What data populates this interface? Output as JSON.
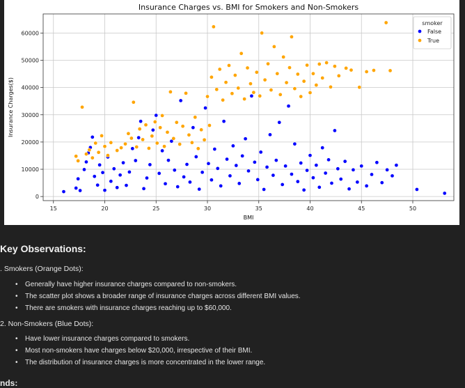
{
  "chart_data": {
    "type": "scatter",
    "title": "Insurance Charges vs. BMI for Smokers and Non-Smokers",
    "xlabel": "BMI",
    "ylabel": "Insurance Charges($)",
    "xlim": [
      14,
      54
    ],
    "ylim": [
      -1500,
      67000
    ],
    "xticks": [
      15,
      20,
      25,
      30,
      35,
      40,
      45,
      50
    ],
    "yticks": [
      0,
      10000,
      20000,
      30000,
      40000,
      50000,
      60000
    ],
    "ytick_labels": [
      "0",
      "10000",
      "20000",
      "30000",
      "40000",
      "50000",
      "60000"
    ],
    "grid": true,
    "legend": {
      "title": "smoker",
      "placement": "top-right"
    },
    "series": [
      {
        "name": "False",
        "color": "#0000ff",
        "values": [
          [
            16,
            1800
          ],
          [
            17.2,
            3100
          ],
          [
            17.4,
            6500
          ],
          [
            17.6,
            2200
          ],
          [
            18.0,
            9900
          ],
          [
            18.2,
            12700
          ],
          [
            18.4,
            16000
          ],
          [
            18.6,
            18000
          ],
          [
            18.8,
            21800
          ],
          [
            19.0,
            7400
          ],
          [
            19.3,
            4200
          ],
          [
            19.5,
            11600
          ],
          [
            19.8,
            8800
          ],
          [
            20.0,
            2300
          ],
          [
            20.3,
            14500
          ],
          [
            20.6,
            5600
          ],
          [
            20.9,
            10200
          ],
          [
            21.2,
            3300
          ],
          [
            21.5,
            7900
          ],
          [
            21.8,
            12400
          ],
          [
            22.1,
            4100
          ],
          [
            22.4,
            9000
          ],
          [
            22.7,
            17600
          ],
          [
            23.0,
            13200
          ],
          [
            23.3,
            21600
          ],
          [
            23.5,
            27600
          ],
          [
            23.8,
            2900
          ],
          [
            24.1,
            6800
          ],
          [
            24.4,
            11700
          ],
          [
            24.7,
            24400
          ],
          [
            25.0,
            29800
          ],
          [
            25.3,
            8500
          ],
          [
            25.6,
            16800
          ],
          [
            25.9,
            4700
          ],
          [
            26.2,
            13300
          ],
          [
            26.5,
            20300
          ],
          [
            26.8,
            9700
          ],
          [
            27.1,
            3600
          ],
          [
            27.4,
            35200
          ],
          [
            27.7,
            7200
          ],
          [
            28.0,
            11800
          ],
          [
            28.3,
            5300
          ],
          [
            28.6,
            25300
          ],
          [
            28.9,
            14600
          ],
          [
            29.2,
            2700
          ],
          [
            29.5,
            8900
          ],
          [
            29.8,
            32500
          ],
          [
            30.1,
            12100
          ],
          [
            30.4,
            6100
          ],
          [
            30.7,
            17400
          ],
          [
            31.0,
            10300
          ],
          [
            31.3,
            3900
          ],
          [
            31.6,
            27600
          ],
          [
            31.9,
            13700
          ],
          [
            32.2,
            7600
          ],
          [
            32.5,
            18600
          ],
          [
            32.8,
            11400
          ],
          [
            33.1,
            4800
          ],
          [
            33.4,
            14900
          ],
          [
            33.7,
            21200
          ],
          [
            34.0,
            9400
          ],
          [
            34.3,
            36900
          ],
          [
            34.6,
            12600
          ],
          [
            34.9,
            6200
          ],
          [
            35.2,
            16300
          ],
          [
            35.5,
            2600
          ],
          [
            35.8,
            10800
          ],
          [
            36.1,
            22700
          ],
          [
            36.4,
            7800
          ],
          [
            36.7,
            13300
          ],
          [
            37.0,
            27200
          ],
          [
            37.3,
            4400
          ],
          [
            37.6,
            11200
          ],
          [
            37.9,
            33200
          ],
          [
            38.2,
            8200
          ],
          [
            38.5,
            19300
          ],
          [
            38.8,
            5500
          ],
          [
            39.1,
            12300
          ],
          [
            39.4,
            2400
          ],
          [
            39.7,
            9600
          ],
          [
            40.0,
            15100
          ],
          [
            40.3,
            6900
          ],
          [
            40.6,
            11500
          ],
          [
            40.9,
            3400
          ],
          [
            41.2,
            17900
          ],
          [
            41.5,
            8600
          ],
          [
            41.8,
            13500
          ],
          [
            42.1,
            4900
          ],
          [
            42.4,
            24200
          ],
          [
            42.7,
            10200
          ],
          [
            43.0,
            6400
          ],
          [
            43.4,
            12900
          ],
          [
            43.8,
            2800
          ],
          [
            44.2,
            9800
          ],
          [
            44.6,
            5300
          ],
          [
            45.0,
            11200
          ],
          [
            45.5,
            3900
          ],
          [
            46.0,
            8100
          ],
          [
            46.5,
            12500
          ],
          [
            47.0,
            5100
          ],
          [
            47.5,
            9800
          ],
          [
            48.0,
            7600
          ],
          [
            48.4,
            11500
          ],
          [
            50.4,
            2600
          ],
          [
            53.1,
            1200
          ]
        ]
      },
      {
        "name": "True",
        "color": "#ffa500",
        "values": [
          [
            17.2,
            14800
          ],
          [
            17.4,
            13100
          ],
          [
            17.8,
            32800
          ],
          [
            18.2,
            15600
          ],
          [
            18.5,
            17100
          ],
          [
            18.8,
            14200
          ],
          [
            19.1,
            19600
          ],
          [
            19.4,
            16200
          ],
          [
            19.7,
            22300
          ],
          [
            20.0,
            18400
          ],
          [
            20.3,
            15100
          ],
          [
            20.6,
            19800
          ],
          [
            21.2,
            16900
          ],
          [
            21.6,
            17900
          ],
          [
            22.0,
            19300
          ],
          [
            22.3,
            23100
          ],
          [
            22.6,
            21400
          ],
          [
            22.8,
            34600
          ],
          [
            23.1,
            18200
          ],
          [
            23.4,
            24800
          ],
          [
            23.7,
            20900
          ],
          [
            24.0,
            26300
          ],
          [
            24.3,
            17700
          ],
          [
            24.6,
            22200
          ],
          [
            24.9,
            27400
          ],
          [
            25.1,
            19600
          ],
          [
            25.4,
            25300
          ],
          [
            25.6,
            29700
          ],
          [
            25.8,
            18400
          ],
          [
            26.1,
            23600
          ],
          [
            26.4,
            38400
          ],
          [
            26.7,
            21300
          ],
          [
            27.0,
            27200
          ],
          [
            27.3,
            19200
          ],
          [
            27.6,
            25800
          ],
          [
            27.9,
            37900
          ],
          [
            28.2,
            22600
          ],
          [
            28.5,
            19800
          ],
          [
            28.8,
            29100
          ],
          [
            29.1,
            17600
          ],
          [
            29.4,
            24500
          ],
          [
            29.7,
            20800
          ],
          [
            30.0,
            36700
          ],
          [
            30.2,
            26100
          ],
          [
            30.4,
            43800
          ],
          [
            30.6,
            62300
          ],
          [
            30.9,
            39300
          ],
          [
            31.2,
            46700
          ],
          [
            31.5,
            35400
          ],
          [
            31.8,
            41900
          ],
          [
            32.1,
            48100
          ],
          [
            32.4,
            37800
          ],
          [
            32.7,
            44500
          ],
          [
            33.0,
            39800
          ],
          [
            33.3,
            52500
          ],
          [
            33.6,
            35800
          ],
          [
            33.9,
            47200
          ],
          [
            34.2,
            41400
          ],
          [
            34.5,
            38200
          ],
          [
            34.8,
            45600
          ],
          [
            35.1,
            36900
          ],
          [
            35.3,
            60000
          ],
          [
            35.6,
            42800
          ],
          [
            35.9,
            48700
          ],
          [
            36.2,
            39100
          ],
          [
            36.5,
            55000
          ],
          [
            36.8,
            45100
          ],
          [
            37.1,
            37400
          ],
          [
            37.4,
            51200
          ],
          [
            37.7,
            41800
          ],
          [
            38.0,
            47300
          ],
          [
            38.2,
            58600
          ],
          [
            38.5,
            39600
          ],
          [
            38.8,
            44900
          ],
          [
            39.1,
            36700
          ],
          [
            39.4,
            42300
          ],
          [
            39.7,
            48200
          ],
          [
            40.0,
            38100
          ],
          [
            40.3,
            45100
          ],
          [
            40.6,
            40900
          ],
          [
            40.9,
            48600
          ],
          [
            41.2,
            43500
          ],
          [
            41.6,
            49100
          ],
          [
            42.0,
            40200
          ],
          [
            42.4,
            47800
          ],
          [
            42.8,
            44300
          ],
          [
            43.5,
            47100
          ],
          [
            44.0,
            46400
          ],
          [
            44.8,
            40100
          ],
          [
            45.5,
            45800
          ],
          [
            46.2,
            46300
          ],
          [
            47.4,
            63800
          ],
          [
            47.8,
            46200
          ]
        ]
      }
    ]
  },
  "notes": {
    "heading": "Key Observations:",
    "sections": [
      {
        "title": ". Smokers (Orange Dots):",
        "bullets": [
          "Generally have higher insurance charges compared to non-smokers.",
          "The scatter plot shows a broader range of insurance charges across different BMI values.",
          "There are smokers with insurance charges reaching up to $60,000."
        ]
      },
      {
        "title": "2. Non-Smokers (Blue Dots):",
        "bullets": [
          "Have lower insurance charges compared to smokers.",
          "Most non-smokers have charges below $20,000, irrespective of their BMI.",
          "The distribution of insurance charges is more concentrated in the lower range."
        ]
      }
    ],
    "cut_off_heading": "nds:"
  }
}
